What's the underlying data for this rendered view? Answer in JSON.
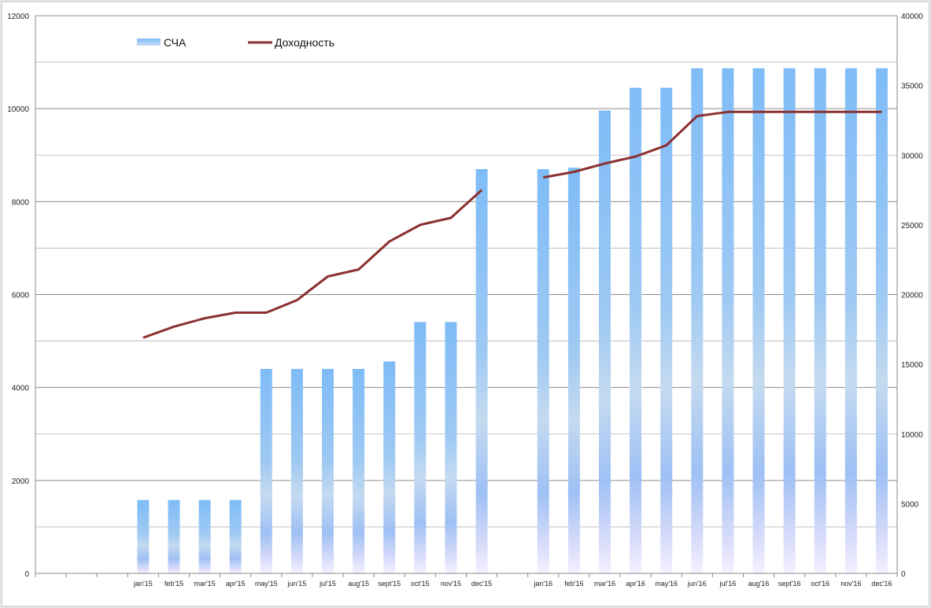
{
  "chart_data": {
    "type": "bar+line",
    "categories": [
      "",
      "",
      "",
      "jan'15",
      "feb'15",
      "mar'15",
      "apr'15",
      "may'15",
      "jun'15",
      "jul'15",
      "aug'15",
      "sept'15",
      "oct'15",
      "nov'15",
      "dec'15",
      "",
      "jan'16",
      "feb'16",
      "mar'16",
      "apr'16",
      "may'16",
      "jun'16",
      "jul'16",
      "aug'16",
      "sept'16",
      "oct'16",
      "nov'16",
      "dec'16"
    ],
    "series": [
      {
        "name": "СЧА",
        "type": "bar",
        "axis": "left",
        "color": "#7fbcf5",
        "values": [
          null,
          null,
          null,
          1580,
          1580,
          1580,
          1580,
          4400,
          4400,
          4400,
          4400,
          4560,
          5410,
          5410,
          8700,
          null,
          8700,
          8730,
          9960,
          10450,
          10450,
          10870,
          10870,
          10870,
          10870,
          10870,
          10870,
          10870
        ]
      },
      {
        "name": "Доходность",
        "type": "line",
        "axis": "right",
        "color": "#8b3030",
        "values": [
          null,
          null,
          null,
          16900,
          17700,
          18300,
          18700,
          18700,
          19600,
          21300,
          21800,
          23800,
          25000,
          25500,
          27500,
          null,
          28400,
          28800,
          29400,
          29900,
          30700,
          32800,
          33100,
          33100,
          33100,
          33100,
          33100,
          33100
        ]
      }
    ],
    "y_left": {
      "min": 0,
      "max": 12000,
      "ticks": [
        "0",
        "2000",
        "4000",
        "6000",
        "8000",
        "10000",
        "12000"
      ]
    },
    "y_right": {
      "min": 0,
      "max": 40000,
      "ticks": [
        "0",
        "5000",
        "10000",
        "15000",
        "20000",
        "25000",
        "30000",
        "35000",
        "40000"
      ]
    },
    "grid": true,
    "legend": {
      "placement": "top-left",
      "items": [
        "СЧА",
        "Доходность"
      ]
    }
  }
}
